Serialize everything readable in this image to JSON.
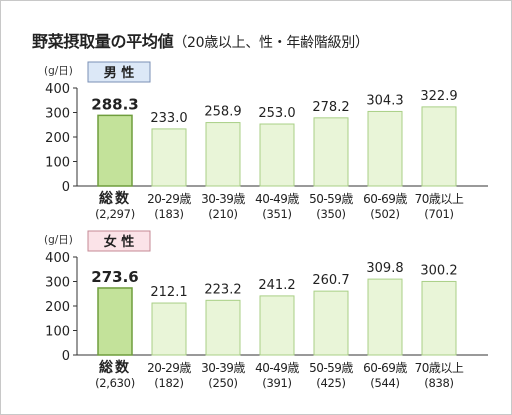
{
  "header": {
    "title": "野菜摂取量の平均値",
    "subtitle": "（20歳以上、性・年齢階級別）"
  },
  "colors": {
    "total_bar": "#c3e29a",
    "total_bar_stroke": "#6f9d3d",
    "age_bar": "#e9f5d8",
    "age_bar_stroke": "#a9cf86",
    "axis": "#333333",
    "male_badge_bg": "#dce8f7",
    "male_badge_border": "#7a8fb5",
    "female_badge_bg": "#fbe3e8",
    "female_badge_border": "#c48a95"
  },
  "chart_data": [
    {
      "type": "bar",
      "group_label": "男 性",
      "unit_label": "(g/日)",
      "categories": [
        "総数",
        "20-29歳",
        "30-39歳",
        "40-49歳",
        "50-59歳",
        "60-69歳",
        "70歳以上"
      ],
      "sample_sizes": [
        "(2,297)",
        "(183)",
        "(210)",
        "(351)",
        "(350)",
        "(502)",
        "(701)"
      ],
      "values": [
        288.3,
        233.0,
        258.9,
        253.0,
        278.2,
        304.3,
        322.9
      ],
      "value_labels": [
        "288.3",
        "233.0",
        "258.9",
        "253.0",
        "278.2",
        "304.3",
        "322.9"
      ],
      "yticks": [
        "0",
        "100",
        "200",
        "300",
        "400"
      ],
      "ylim": [
        0,
        400
      ],
      "grid": false
    },
    {
      "type": "bar",
      "group_label": "女 性",
      "unit_label": "(g/日)",
      "categories": [
        "総数",
        "20-29歳",
        "30-39歳",
        "40-49歳",
        "50-59歳",
        "60-69歳",
        "70歳以上"
      ],
      "sample_sizes": [
        "(2,630)",
        "(182)",
        "(250)",
        "(391)",
        "(425)",
        "(544)",
        "(838)"
      ],
      "values": [
        273.6,
        212.1,
        223.2,
        241.2,
        260.7,
        309.8,
        300.2
      ],
      "value_labels": [
        "273.6",
        "212.1",
        "223.2",
        "241.2",
        "260.7",
        "309.8",
        "300.2"
      ],
      "yticks": [
        "0",
        "100",
        "200",
        "300",
        "400"
      ],
      "ylim": [
        0,
        400
      ],
      "grid": false
    }
  ]
}
